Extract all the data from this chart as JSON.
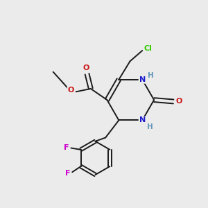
{
  "bg_color": "#ebebeb",
  "atom_colors": {
    "C": "#1a1a1a",
    "N": "#1a1acc",
    "O": "#cc1a1a",
    "F": "#cc00cc",
    "Cl": "#33cc00",
    "H": "#6699bb"
  },
  "bond_color": "#1a1a1a",
  "bond_lw": 1.4,
  "figsize": [
    3.0,
    3.0
  ],
  "dpi": 100
}
